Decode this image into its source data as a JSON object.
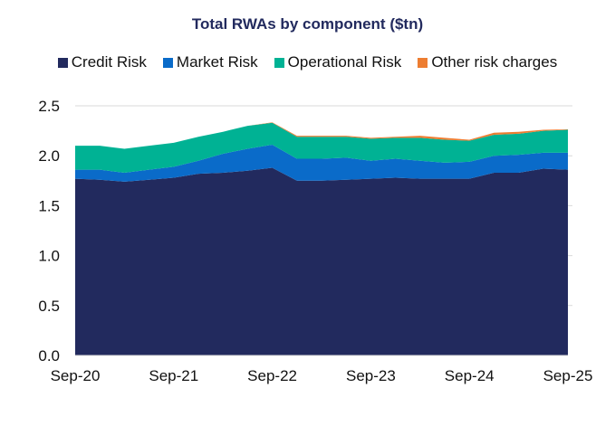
{
  "chart_data": {
    "type": "area",
    "stacked": true,
    "title": "Total RWAs by component ($tn)",
    "xlabel": "",
    "ylabel": "",
    "ylim": [
      0,
      2.5
    ],
    "yticks": [
      "0.0",
      "0.5",
      "1.0",
      "1.5",
      "2.0",
      "2.5"
    ],
    "xtick_labels": [
      "Sep-20",
      "Sep-21",
      "Sep-22",
      "Sep-23",
      "Sep-24",
      "Sep-25"
    ],
    "x": [
      "Sep-20",
      "Dec-20",
      "Mar-21",
      "Jun-21",
      "Sep-21",
      "Dec-21",
      "Mar-22",
      "Jun-22",
      "Sep-22",
      "Dec-22",
      "Mar-23",
      "Jun-23",
      "Sep-23",
      "Dec-23",
      "Mar-24",
      "Jun-24",
      "Sep-24",
      "Dec-24",
      "Mar-25",
      "Jun-25",
      "Sep-25"
    ],
    "legend_position": "top",
    "grid": false,
    "series": [
      {
        "name": "Credit Risk",
        "color": "#222a5e",
        "values": [
          1.77,
          1.76,
          1.74,
          1.76,
          1.78,
          1.82,
          1.83,
          1.85,
          1.88,
          1.75,
          1.75,
          1.76,
          1.77,
          1.78,
          1.77,
          1.77,
          1.77,
          1.83,
          1.83,
          1.87,
          1.86
        ]
      },
      {
        "name": "Market Risk",
        "color": "#0a6bc9",
        "values": [
          0.09,
          0.1,
          0.09,
          0.1,
          0.11,
          0.13,
          0.19,
          0.22,
          0.23,
          0.22,
          0.22,
          0.22,
          0.18,
          0.19,
          0.18,
          0.16,
          0.17,
          0.17,
          0.18,
          0.16,
          0.17
        ]
      },
      {
        "name": "Operational Risk",
        "color": "#00b294",
        "values": [
          0.24,
          0.24,
          0.24,
          0.24,
          0.24,
          0.24,
          0.22,
          0.23,
          0.22,
          0.22,
          0.22,
          0.21,
          0.22,
          0.21,
          0.23,
          0.23,
          0.21,
          0.21,
          0.21,
          0.22,
          0.23
        ]
      },
      {
        "name": "Other risk charges",
        "color": "#ed7d31",
        "values": [
          0,
          0,
          0,
          0,
          0,
          0,
          0,
          0,
          0.005,
          0.01,
          0.01,
          0.01,
          0.01,
          0.01,
          0.02,
          0.02,
          0.01,
          0.02,
          0.02,
          0.01,
          0.005
        ]
      }
    ]
  }
}
